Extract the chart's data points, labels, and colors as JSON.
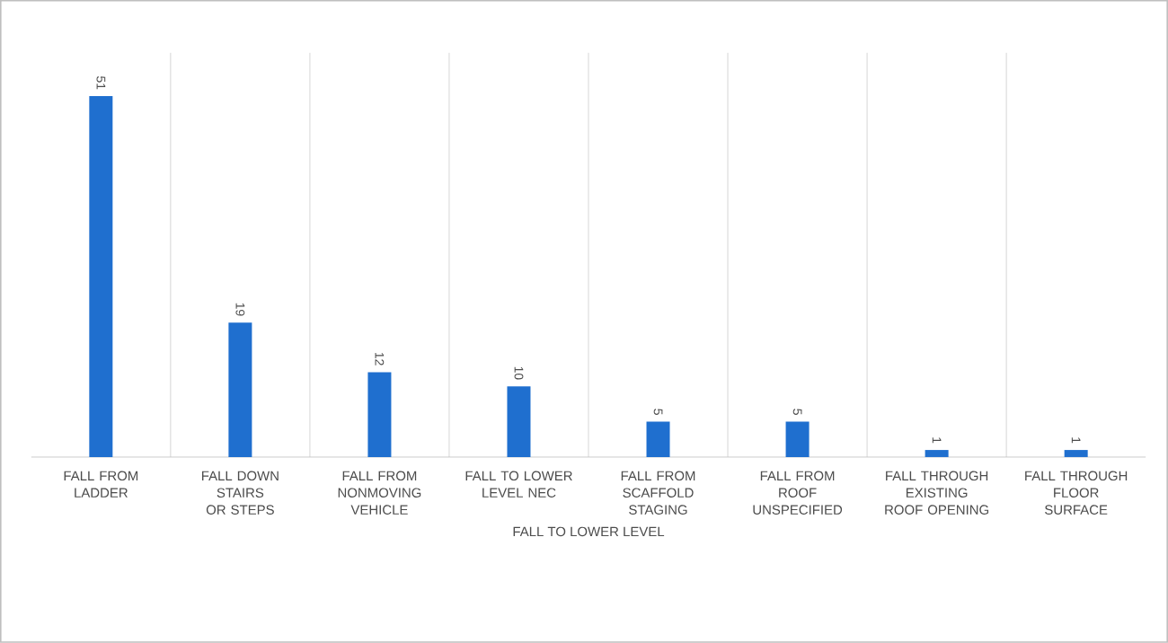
{
  "chart_data": {
    "type": "bar",
    "xlabel": "FALL TO LOWER LEVEL",
    "categories": [
      "FALL FROM LADDER",
      "FALL DOWN STAIRS OR STEPS",
      "FALL FROM NONMOVING VEHICLE",
      "FALL TO LOWER LEVEL NEC",
      "FALL FROM SCAFFOLD STAGING",
      "FALL FROM ROOF UNSPECIFIED",
      "FALL THROUGH EXISTING ROOF OPENING",
      "FALL THROUGH FLOOR SURFACE"
    ],
    "values": [
      51,
      19,
      12,
      10,
      5,
      5,
      1,
      1
    ],
    "color": "#1f6fcf",
    "data_labels": true,
    "grid": "x"
  }
}
